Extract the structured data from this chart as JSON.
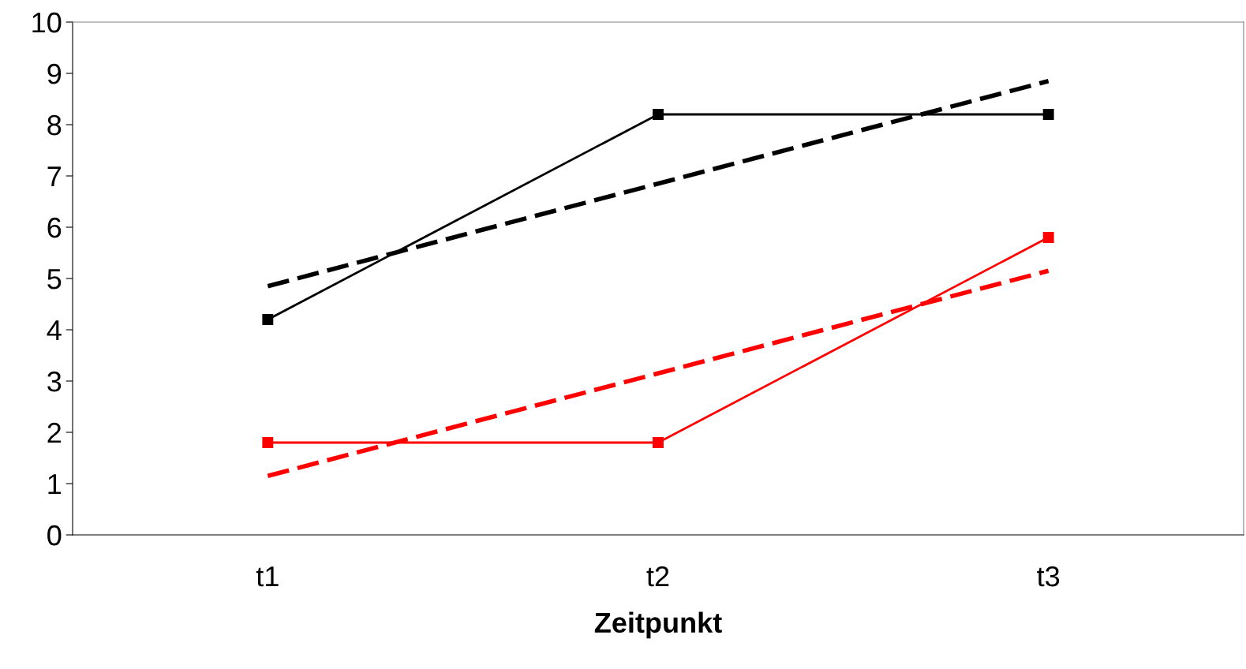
{
  "chart_data": {
    "type": "line",
    "xlabel": "Zeitpunkt",
    "categories": [
      "t1",
      "t2",
      "t3"
    ],
    "series": [
      {
        "color": "#000000",
        "values": [
          4.2,
          8.2,
          8.2
        ],
        "marker": "square",
        "line_style": "solid"
      },
      {
        "color": "#000000",
        "values": [
          4.85,
          6.85,
          8.85
        ],
        "marker": "none",
        "line_style": "dashed"
      },
      {
        "color": "#ff0000",
        "values": [
          1.8,
          1.8,
          5.8
        ],
        "marker": "square",
        "line_style": "solid"
      },
      {
        "color": "#ff0000",
        "values": [
          1.15,
          3.15,
          5.15
        ],
        "marker": "none",
        "line_style": "dashed"
      }
    ],
    "ylim": [
      0,
      10
    ],
    "yticks": [
      0,
      1,
      2,
      3,
      4,
      5,
      6,
      7,
      8,
      9,
      10
    ],
    "grid": false
  }
}
